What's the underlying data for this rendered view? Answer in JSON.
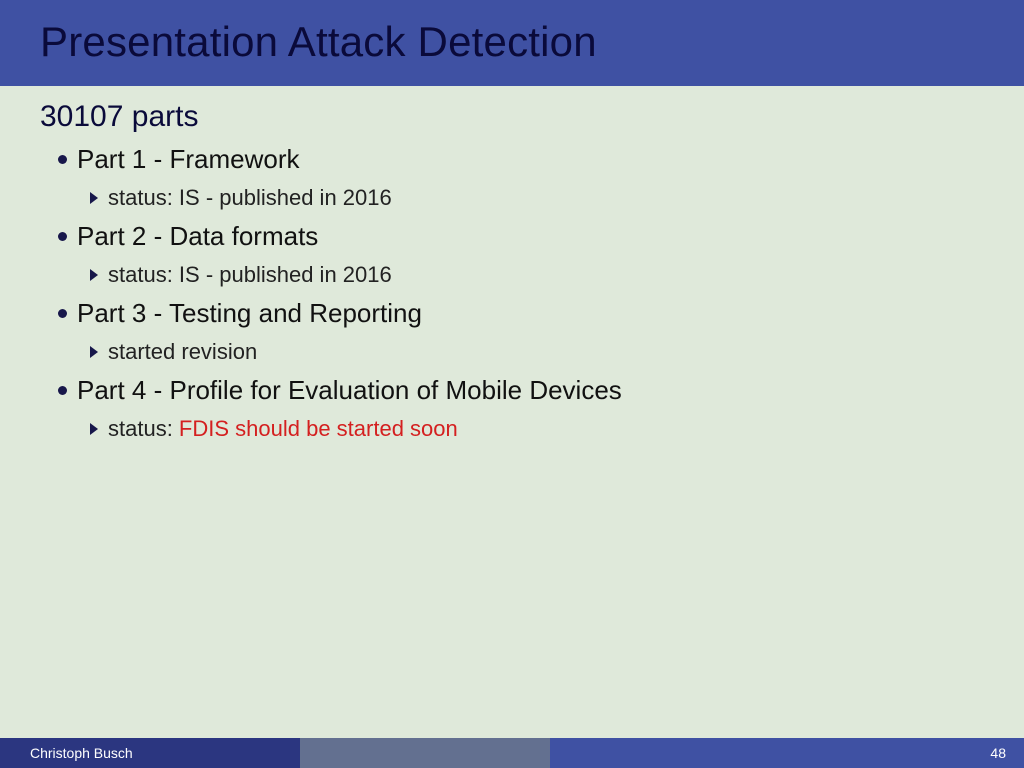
{
  "colors": {
    "title_bar_bg": "#3f51a3",
    "title_text": "#0a0a3a",
    "content_bg": "#dfe9da",
    "subtitle_text": "#0a0a3a",
    "bullet_dot": "#17174a",
    "part_text": "#111111",
    "arrow": "#17174a",
    "sub_text": "#222222",
    "red_text": "#d42020",
    "footer_left_bg": "#2b3680",
    "footer_mid_bg": "#637090",
    "footer_right_bg": "#3f51a3",
    "footer_text": "#ffffff"
  },
  "title": "Presentation Attack Detection",
  "subtitle": "30107 parts",
  "parts": [
    {
      "title": "Part 1  - Framework",
      "sub_prefix": "status: ",
      "sub_plain": "IS - published in 2016",
      "sub_red": ""
    },
    {
      "title": "Part 2 - Data formats",
      "sub_prefix": "status: ",
      "sub_plain": "IS - published in 2016",
      "sub_red": ""
    },
    {
      "title": "Part 3 - Testing and Reporting",
      "sub_prefix": "",
      "sub_plain": "started revision",
      "sub_red": ""
    },
    {
      "title": "Part 4 - Profile for Evaluation of Mobile Devices",
      "sub_prefix": "status: ",
      "sub_plain": "",
      "sub_red": "FDIS should be started soon"
    }
  ],
  "footer": {
    "author": "Christoph Busch",
    "page": "48"
  }
}
